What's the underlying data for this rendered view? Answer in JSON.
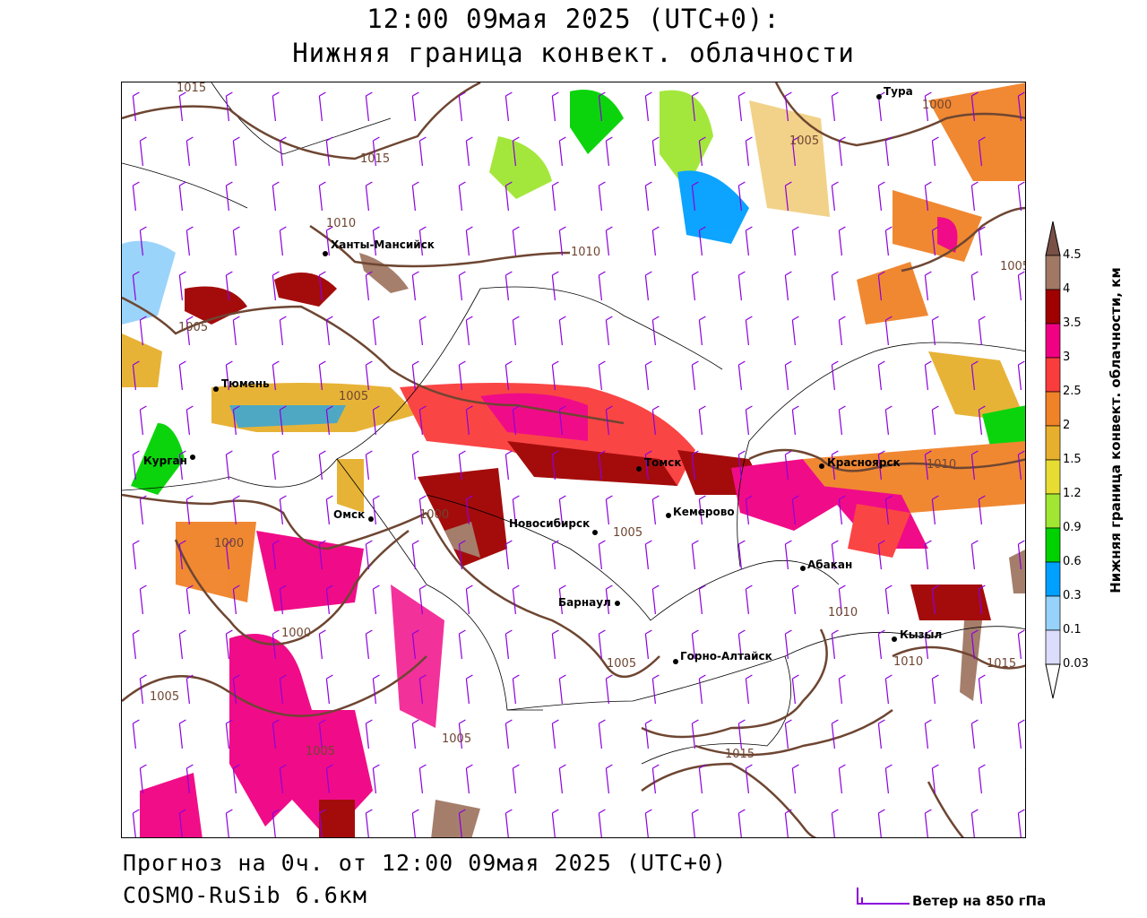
{
  "header": {
    "title_line1": "12:00 09мая 2025 (UTC+0):",
    "title_line2": "Нижняя граница конвект. облачности"
  },
  "footer": {
    "forecast": "Прогноз на 0ч. от 12:00 09мая 2025 (UTC+0)",
    "model": "COSMO-RuSib 6.6км",
    "wind_legend": "Ветер на 850 гПа"
  },
  "colorbar": {
    "title": "Нижняя граница конвект. облачности, км",
    "ticks": [
      "0.03",
      "0.1",
      "0.3",
      "0.6",
      "0.9",
      "1.2",
      "1.5",
      "2",
      "2.5",
      "3",
      "3.5",
      "4",
      "4.5"
    ],
    "colors": [
      "#dcdcfc",
      "#96d2fa",
      "#00a0ff",
      "#00d200",
      "#a0e632",
      "#e6dc32",
      "#e6af2d",
      "#f08228",
      "#fa3c3c",
      "#f00082",
      "#a00000",
      "#a07864",
      "#785046"
    ]
  },
  "map": {
    "cities": [
      "Тура",
      "Ханты-Мансийск",
      "Тюмень",
      "Курган",
      "Омск",
      "Новосибирск",
      "Томск",
      "Кемерово",
      "Красноярск",
      "Абакан",
      "Барнаул",
      "Горно-Алтайск",
      "Кызыл"
    ],
    "isobar_labels": [
      "1015",
      "1015",
      "1010",
      "1010",
      "1005",
      "1000",
      "1005",
      "1005",
      "1005",
      "1010",
      "1000",
      "1005",
      "1000",
      "1000",
      "1010",
      "1005",
      "1010",
      "1015",
      "1005",
      "1005",
      "1005",
      "1015"
    ],
    "colors": {
      "isobar": "#6e4632",
      "wind": "#8c00dc",
      "border": "#000000"
    }
  }
}
